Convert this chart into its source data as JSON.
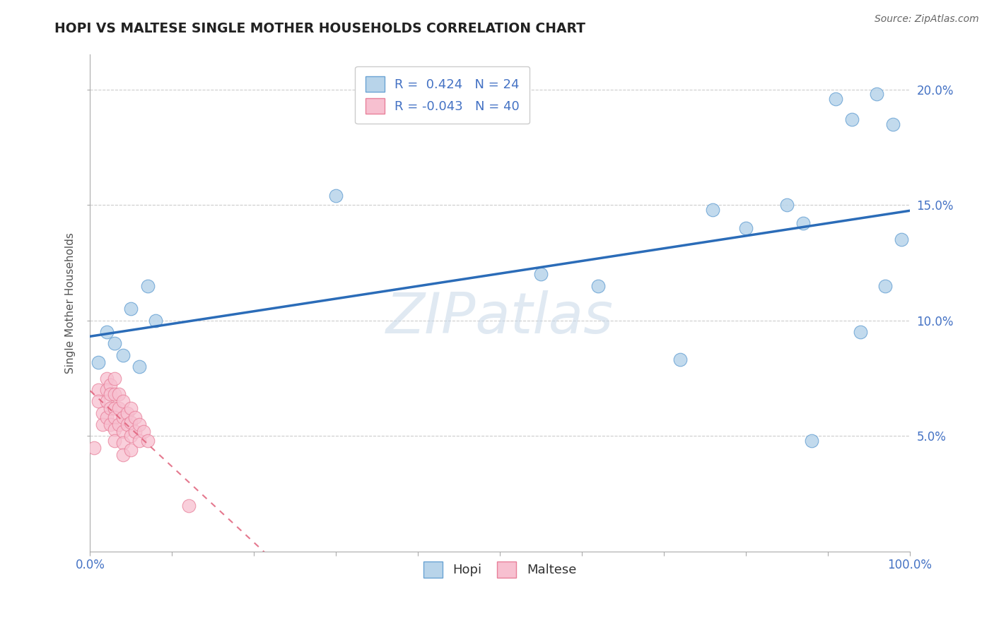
{
  "title": "HOPI VS MALTESE SINGLE MOTHER HOUSEHOLDS CORRELATION CHART",
  "source": "Source: ZipAtlas.com",
  "ylabel_label": "Single Mother Households",
  "watermark": "ZIPatlas",
  "hopi_R": 0.424,
  "hopi_N": 24,
  "maltese_R": -0.043,
  "maltese_N": 40,
  "hopi_color": "#b8d4ea",
  "hopi_edge_color": "#6aa3d4",
  "hopi_line_color": "#2b6cb8",
  "maltese_color": "#f7c0d0",
  "maltese_edge_color": "#e8809a",
  "maltese_line_color": "#e0607a",
  "hopi_x": [
    0.01,
    0.02,
    0.03,
    0.04,
    0.05,
    0.06,
    0.07,
    0.08,
    0.3,
    0.55,
    0.62,
    0.72,
    0.76,
    0.8,
    0.85,
    0.87,
    0.88,
    0.91,
    0.93,
    0.94,
    0.96,
    0.97,
    0.98,
    0.99
  ],
  "hopi_y": [
    0.082,
    0.095,
    0.09,
    0.085,
    0.105,
    0.08,
    0.115,
    0.1,
    0.154,
    0.12,
    0.115,
    0.083,
    0.148,
    0.14,
    0.15,
    0.142,
    0.048,
    0.196,
    0.187,
    0.095,
    0.198,
    0.115,
    0.185,
    0.135
  ],
  "maltese_x": [
    0.005,
    0.01,
    0.01,
    0.015,
    0.015,
    0.02,
    0.02,
    0.02,
    0.02,
    0.025,
    0.025,
    0.025,
    0.025,
    0.03,
    0.03,
    0.03,
    0.03,
    0.03,
    0.03,
    0.035,
    0.035,
    0.035,
    0.04,
    0.04,
    0.04,
    0.04,
    0.04,
    0.045,
    0.045,
    0.05,
    0.05,
    0.05,
    0.05,
    0.055,
    0.055,
    0.06,
    0.06,
    0.065,
    0.07,
    0.12
  ],
  "maltese_y": [
    0.045,
    0.07,
    0.065,
    0.06,
    0.055,
    0.075,
    0.07,
    0.065,
    0.058,
    0.072,
    0.068,
    0.062,
    0.055,
    0.075,
    0.068,
    0.062,
    0.058,
    0.053,
    0.048,
    0.068,
    0.062,
    0.055,
    0.065,
    0.058,
    0.052,
    0.047,
    0.042,
    0.06,
    0.055,
    0.062,
    0.056,
    0.05,
    0.044,
    0.058,
    0.052,
    0.055,
    0.048,
    0.052,
    0.048,
    0.02
  ],
  "xlim": [
    0.0,
    1.0
  ],
  "ylim": [
    0.0,
    0.215
  ],
  "background_color": "#ffffff",
  "grid_color": "#cccccc"
}
